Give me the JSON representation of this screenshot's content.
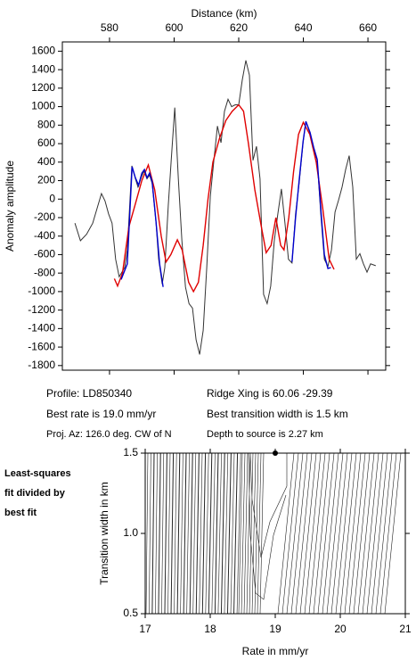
{
  "chart_data": [
    {
      "type": "line",
      "x_label": "Distance (km)",
      "y_label": "Anomaly amplitude",
      "x_axis_position": "top",
      "xlim": [
        565.4,
        665.5
      ],
      "ylim": [
        -1850,
        1700
      ],
      "xticks": [
        580,
        600,
        620,
        640,
        660
      ],
      "yticks": [
        -1800,
        -1600,
        -1400,
        -1200,
        -1000,
        -800,
        -600,
        -400,
        -200,
        0,
        200,
        400,
        600,
        800,
        1000,
        1200,
        1400,
        1600
      ],
      "series": [
        {
          "color": "#333333",
          "x": [
            569.3,
            571,
            572.9,
            574.8,
            576.4,
            577.5,
            578.6,
            579.7,
            580.8,
            581.9,
            583,
            584.7,
            585.5,
            586.9,
            588,
            588.8,
            589.9,
            590.7,
            591.6,
            592.4,
            593.2,
            594.4,
            595.2,
            596.3,
            597.1,
            598.2,
            599.1,
            600.2,
            601.3,
            602.4,
            603.5,
            604.6,
            605.7,
            606.8,
            607.9,
            609,
            610.1,
            611.2,
            612.3,
            613.4,
            614.5,
            615.6,
            616.7,
            617.8,
            618.9,
            620,
            621.1,
            622.2,
            623.3,
            624.4,
            625.5,
            626.6,
            627.7,
            628.8,
            629.9,
            631,
            632.1,
            633.2,
            634.3,
            635.4,
            636.5,
            637.6,
            638.7,
            639.9,
            640.8,
            642.1,
            643.2,
            644.3,
            645.4,
            646.5,
            647.6,
            648.7,
            649.8,
            650.9,
            652,
            653.1,
            654.2,
            655.3,
            656.4,
            657.5,
            658.6,
            659.7,
            660.8,
            662.4
          ],
          "values": [
            -260,
            -450,
            -380,
            -260,
            -70,
            60,
            -20,
            -160,
            -260,
            -650,
            -840,
            -740,
            -550,
            360,
            220,
            130,
            240,
            300,
            220,
            260,
            170,
            -260,
            -650,
            -920,
            -740,
            -70,
            420,
            990,
            220,
            -450,
            -950,
            -1130,
            -1180,
            -1520,
            -1680,
            -1420,
            -740,
            30,
            420,
            790,
            610,
            950,
            1080,
            1000,
            1020,
            1020,
            1290,
            1500,
            1340,
            420,
            570,
            220,
            -1030,
            -1130,
            -940,
            -450,
            -160,
            110,
            -260,
            -650,
            -690,
            -160,
            170,
            610,
            840,
            710,
            540,
            420,
            -160,
            -650,
            -730,
            -550,
            -140,
            -10,
            130,
            320,
            470,
            130,
            -650,
            -590,
            -700,
            -790,
            -700,
            -720
          ]
        },
        {
          "color": "#e00000",
          "x": [
            581.5,
            582.5,
            584,
            586,
            588,
            590,
            592,
            594,
            596,
            597.5,
            599,
            601,
            602.5,
            604.5,
            606,
            607.5,
            609,
            610.5,
            612,
            614,
            616,
            618,
            620,
            621.5,
            623,
            625,
            627,
            628.5,
            630,
            631.5,
            633,
            634,
            635.5,
            637,
            638.5,
            640,
            642,
            644,
            646,
            648,
            649.5
          ],
          "values": [
            -860,
            -940,
            -800,
            -300,
            -50,
            200,
            370,
            100,
            -400,
            -680,
            -600,
            -440,
            -550,
            -900,
            -1000,
            -900,
            -500,
            0,
            400,
            650,
            850,
            950,
            1020,
            950,
            600,
            100,
            -300,
            -580,
            -500,
            -200,
            -500,
            -550,
            -200,
            300,
            700,
            830,
            700,
            400,
            -100,
            -650,
            -760
          ]
        },
        {
          "color": "#0000cc",
          "x": [
            583.6,
            585.5,
            587,
            588,
            589,
            590,
            590.8,
            591.6,
            592.4,
            593.2,
            594.4,
            595.5,
            596.6,
            615,
            636.5,
            637.6,
            638.7,
            639.9,
            640.8,
            642.1,
            643.2,
            644.3,
            645.4,
            646.5,
            647.6,
            648.5
          ],
          "values": [
            -870,
            -700,
            350,
            230,
            150,
            280,
            320,
            230,
            280,
            190,
            -250,
            -700,
            -950,
            null,
            -680,
            -200,
            200,
            620,
            840,
            720,
            560,
            430,
            -100,
            -600,
            -750,
            -740
          ]
        }
      ],
      "annotations": [
        "Profile: LD850340",
        "Best rate is 19.0 mm/yr",
        "Proj. Az: 126.0 deg. CW of N",
        "Ridge Xing is 60.06 -29.39",
        "Best transition width is 1.5 km",
        "Depth to source is   2.27 km"
      ]
    },
    {
      "type": "scatter",
      "x_label": "Rate in mm/yr",
      "y_label": "Transition width in km",
      "x_axis_position": "bottom",
      "xlim": [
        17,
        21
      ],
      "ylim": [
        0.5,
        1.5
      ],
      "xticks": [
        17,
        18,
        19,
        20,
        21
      ],
      "yticks": [
        0.5,
        {
          "value": 1,
          "label": "1.0"
        },
        1.5
      ],
      "series": [
        {
          "color": "#000000",
          "x": [
            19
          ],
          "values": [
            1.5
          ]
        }
      ],
      "annotations": [
        "Least-squares",
        "fit divided by",
        "best fit"
      ]
    }
  ]
}
